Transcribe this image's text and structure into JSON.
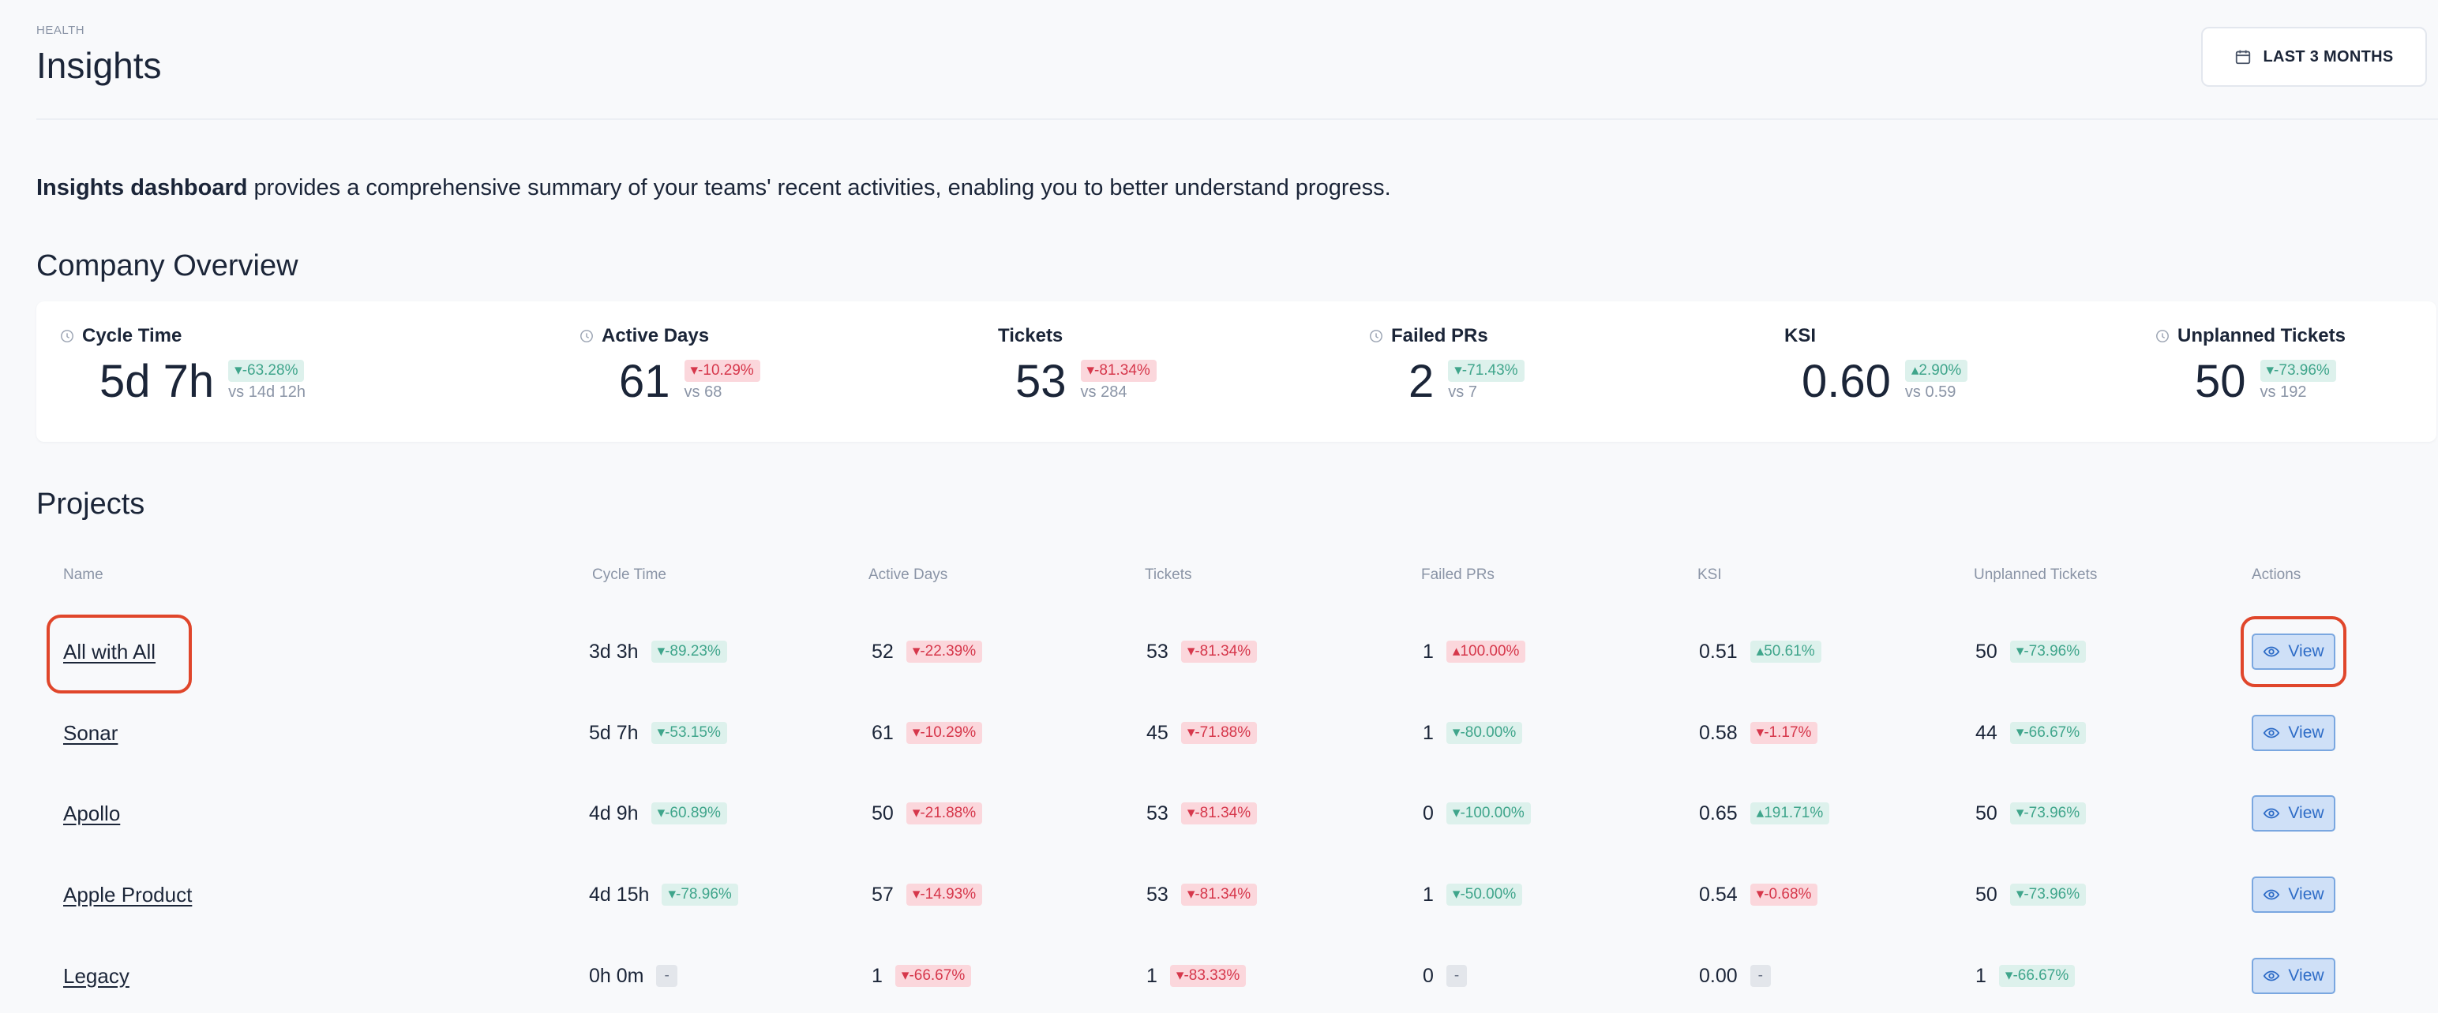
{
  "header": {
    "eyebrow": "HEALTH",
    "title": "Insights",
    "date_range_label": "LAST 3 MONTHS"
  },
  "intro": {
    "bold": "Insights dashboard",
    "rest": " provides a comprehensive summary of your teams' recent activities, enabling you to better understand progress."
  },
  "overview": {
    "heading": "Company Overview",
    "metrics": [
      {
        "label": "Cycle Time",
        "value": "5d 7h",
        "change": "▾-63.28%",
        "trend": "down-good",
        "vs": "vs 14d 12h",
        "has_info": true
      },
      {
        "label": "Active Days",
        "value": "61",
        "change": "▾-10.29%",
        "trend": "down-bad",
        "vs": "vs 68",
        "has_info": true
      },
      {
        "label": "Tickets",
        "value": "53",
        "change": "▾-81.34%",
        "trend": "down-bad",
        "vs": "vs 284",
        "has_info": false
      },
      {
        "label": "Failed PRs",
        "value": "2",
        "change": "▾-71.43%",
        "trend": "down-good",
        "vs": "vs 7",
        "has_info": true
      },
      {
        "label": "KSI",
        "value": "0.60",
        "change": "▴2.90%",
        "trend": "up-good",
        "vs": "vs 0.59",
        "has_info": false
      },
      {
        "label": "Unplanned Tickets",
        "value": "50",
        "change": "▾-73.96%",
        "trend": "down-good",
        "vs": "vs 192",
        "has_info": true
      }
    ]
  },
  "projects": {
    "heading": "Projects",
    "columns": [
      "Name",
      "Cycle Time",
      "Active Days",
      "Tickets",
      "Failed PRs",
      "KSI",
      "Unplanned Tickets",
      "Actions"
    ],
    "view_label": "View",
    "rows": [
      {
        "name": "All with All",
        "cycle": {
          "v": "3d 3h",
          "c": "▾-89.23%",
          "t": "down-good"
        },
        "active": {
          "v": "52",
          "c": "▾-22.39%",
          "t": "down-bad"
        },
        "tickets": {
          "v": "53",
          "c": "▾-81.34%",
          "t": "down-bad"
        },
        "failed": {
          "v": "1",
          "c": "▴100.00%",
          "t": "up-bad"
        },
        "ksi": {
          "v": "0.51",
          "c": "▴50.61%",
          "t": "up-good"
        },
        "unplanned": {
          "v": "50",
          "c": "▾-73.96%",
          "t": "down-good"
        }
      },
      {
        "name": "Sonar",
        "cycle": {
          "v": "5d 7h",
          "c": "▾-53.15%",
          "t": "down-good"
        },
        "active": {
          "v": "61",
          "c": "▾-10.29%",
          "t": "down-bad"
        },
        "tickets": {
          "v": "45",
          "c": "▾-71.88%",
          "t": "down-bad"
        },
        "failed": {
          "v": "1",
          "c": "▾-80.00%",
          "t": "down-good"
        },
        "ksi": {
          "v": "0.58",
          "c": "▾-1.17%",
          "t": "down-bad"
        },
        "unplanned": {
          "v": "44",
          "c": "▾-66.67%",
          "t": "down-good"
        }
      },
      {
        "name": "Apollo",
        "cycle": {
          "v": "4d 9h",
          "c": "▾-60.89%",
          "t": "down-good"
        },
        "active": {
          "v": "50",
          "c": "▾-21.88%",
          "t": "down-bad"
        },
        "tickets": {
          "v": "53",
          "c": "▾-81.34%",
          "t": "down-bad"
        },
        "failed": {
          "v": "0",
          "c": "▾-100.00%",
          "t": "down-good"
        },
        "ksi": {
          "v": "0.65",
          "c": "▴191.71%",
          "t": "up-good"
        },
        "unplanned": {
          "v": "50",
          "c": "▾-73.96%",
          "t": "down-good"
        }
      },
      {
        "name": "Apple Product",
        "cycle": {
          "v": "4d 15h",
          "c": "▾-78.96%",
          "t": "down-good"
        },
        "active": {
          "v": "57",
          "c": "▾-14.93%",
          "t": "down-bad"
        },
        "tickets": {
          "v": "53",
          "c": "▾-81.34%",
          "t": "down-bad"
        },
        "failed": {
          "v": "1",
          "c": "▾-50.00%",
          "t": "down-good"
        },
        "ksi": {
          "v": "0.54",
          "c": "▾-0.68%",
          "t": "down-bad"
        },
        "unplanned": {
          "v": "50",
          "c": "▾-73.96%",
          "t": "down-good"
        }
      },
      {
        "name": "Legacy",
        "cycle": {
          "v": "0h 0m",
          "c": "-",
          "t": "neutral"
        },
        "active": {
          "v": "1",
          "c": "▾-66.67%",
          "t": "down-bad"
        },
        "tickets": {
          "v": "1",
          "c": "▾-83.33%",
          "t": "down-bad"
        },
        "failed": {
          "v": "0",
          "c": "-",
          "t": "neutral"
        },
        "ksi": {
          "v": "0.00",
          "c": "-",
          "t": "neutral"
        },
        "unplanned": {
          "v": "1",
          "c": "▾-66.67%",
          "t": "down-good"
        }
      }
    ]
  },
  "colors": {
    "good_bg": "#ddf1ec",
    "good_fg": "#3fa58b",
    "bad_bg": "#fbd7dc",
    "bad_fg": "#d6374b",
    "view_bg": "#cfe0f7",
    "view_border": "#7aa7e0",
    "annotation": "#e0462b"
  }
}
